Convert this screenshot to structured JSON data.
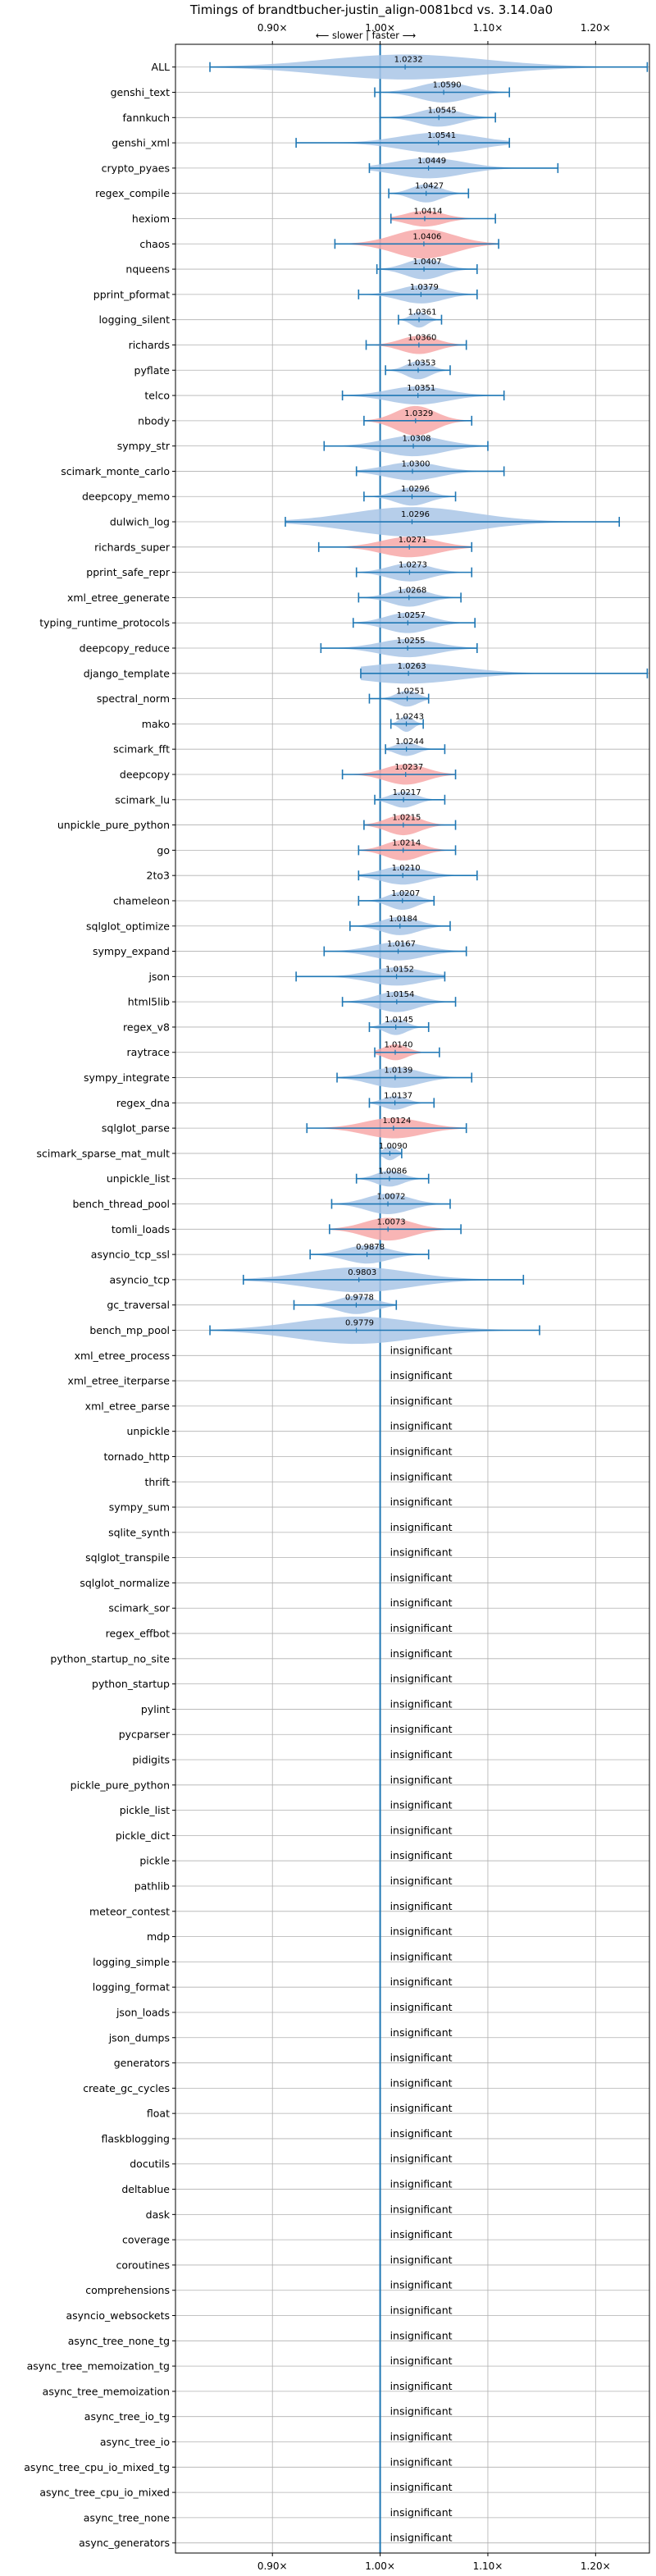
{
  "chart_data": {
    "type": "violin",
    "title": "Timings of brandtbucher-justin_align-0081bcd vs. 3.14.0a0",
    "direction_label": "⟵ slower | faster ⟶",
    "x_ticks": [
      {
        "value": 0.9,
        "label": "0.90×"
      },
      {
        "value": 1.0,
        "label": "1.00×"
      },
      {
        "value": 1.1,
        "label": "1.10×"
      },
      {
        "value": 1.2,
        "label": "1.20×"
      }
    ],
    "xlim": [
      0.81,
      1.25
    ],
    "reference_line": 1.0,
    "grid": true,
    "colors": {
      "faster": "#a9c6e6",
      "slower": "#f7a8a8",
      "whisker": "#1f77b4",
      "grid": "#b0b0b0"
    },
    "significant": [
      {
        "name": "ALL",
        "value": 1.0232,
        "label": "1.0232",
        "min": 0.842,
        "max": 1.248,
        "width": 0.55,
        "color": "faster"
      },
      {
        "name": "genshi_text",
        "value": 1.059,
        "label": "1.0590",
        "min": 0.995,
        "max": 1.12,
        "width": 0.45,
        "color": "faster"
      },
      {
        "name": "fannkuch",
        "value": 1.0545,
        "label": "1.0545",
        "min": 1.0,
        "max": 1.107,
        "width": 0.4,
        "color": "faster"
      },
      {
        "name": "genshi_xml",
        "value": 1.0541,
        "label": "1.0541",
        "min": 0.922,
        "max": 1.12,
        "width": 0.45,
        "color": "faster"
      },
      {
        "name": "crypto_pyaes",
        "value": 1.0449,
        "label": "1.0449",
        "min": 0.99,
        "max": 1.165,
        "width": 0.45,
        "color": "faster"
      },
      {
        "name": "regex_compile",
        "value": 1.0427,
        "label": "1.0427",
        "min": 1.008,
        "max": 1.082,
        "width": 0.4,
        "color": "faster"
      },
      {
        "name": "hexiom",
        "value": 1.0414,
        "label": "1.0414",
        "min": 1.01,
        "max": 1.107,
        "width": 0.35,
        "color": "slower"
      },
      {
        "name": "chaos",
        "value": 1.0406,
        "label": "1.0406",
        "min": 0.958,
        "max": 1.11,
        "width": 0.65,
        "color": "slower"
      },
      {
        "name": "nqueens",
        "value": 1.0407,
        "label": "1.0407",
        "min": 0.997,
        "max": 1.09,
        "width": 0.45,
        "color": "faster"
      },
      {
        "name": "pprint_pformat",
        "value": 1.0379,
        "label": "1.0379",
        "min": 0.98,
        "max": 1.09,
        "width": 0.4,
        "color": "faster"
      },
      {
        "name": "logging_silent",
        "value": 1.0361,
        "label": "1.0361",
        "min": 1.017,
        "max": 1.057,
        "width": 0.35,
        "color": "faster"
      },
      {
        "name": "richards",
        "value": 1.036,
        "label": "1.0360",
        "min": 0.987,
        "max": 1.08,
        "width": 0.4,
        "color": "slower"
      },
      {
        "name": "pyflate",
        "value": 1.0353,
        "label": "1.0353",
        "min": 1.005,
        "max": 1.065,
        "width": 0.4,
        "color": "faster"
      },
      {
        "name": "telco",
        "value": 1.0351,
        "label": "1.0351",
        "min": 0.965,
        "max": 1.115,
        "width": 0.4,
        "color": "faster"
      },
      {
        "name": "nbody",
        "value": 1.0329,
        "label": "1.0329",
        "min": 0.985,
        "max": 1.085,
        "width": 0.65,
        "color": "slower"
      },
      {
        "name": "sympy_str",
        "value": 1.0308,
        "label": "1.0308",
        "min": 0.948,
        "max": 1.1,
        "width": 0.45,
        "color": "faster"
      },
      {
        "name": "scimark_monte_carlo",
        "value": 1.03,
        "label": "1.0300",
        "min": 0.978,
        "max": 1.115,
        "width": 0.4,
        "color": "faster"
      },
      {
        "name": "deepcopy_memo",
        "value": 1.0296,
        "label": "1.0296",
        "min": 0.985,
        "max": 1.07,
        "width": 0.4,
        "color": "faster"
      },
      {
        "name": "dulwich_log",
        "value": 1.0296,
        "label": "1.0296",
        "min": 0.912,
        "max": 1.222,
        "width": 0.65,
        "color": "faster"
      },
      {
        "name": "richards_super",
        "value": 1.0271,
        "label": "1.0271",
        "min": 0.943,
        "max": 1.085,
        "width": 0.45,
        "color": "slower"
      },
      {
        "name": "pprint_safe_repr",
        "value": 1.0273,
        "label": "1.0273",
        "min": 0.978,
        "max": 1.085,
        "width": 0.4,
        "color": "faster"
      },
      {
        "name": "xml_etree_generate",
        "value": 1.0268,
        "label": "1.0268",
        "min": 0.98,
        "max": 1.075,
        "width": 0.4,
        "color": "faster"
      },
      {
        "name": "typing_runtime_protocols",
        "value": 1.0257,
        "label": "1.0257",
        "min": 0.975,
        "max": 1.088,
        "width": 0.45,
        "color": "faster"
      },
      {
        "name": "deepcopy_reduce",
        "value": 1.0255,
        "label": "1.0255",
        "min": 0.945,
        "max": 1.09,
        "width": 0.4,
        "color": "faster"
      },
      {
        "name": "django_template",
        "value": 1.0263,
        "label": "1.0263",
        "min": 0.982,
        "max": 1.248,
        "width": 0.45,
        "color": "faster"
      },
      {
        "name": "spectral_norm",
        "value": 1.0251,
        "label": "1.0251",
        "min": 0.99,
        "max": 1.045,
        "width": 0.35,
        "color": "faster"
      },
      {
        "name": "mako",
        "value": 1.0243,
        "label": "1.0243",
        "min": 1.01,
        "max": 1.04,
        "width": 0.35,
        "color": "faster"
      },
      {
        "name": "scimark_fft",
        "value": 1.0244,
        "label": "1.0244",
        "min": 1.005,
        "max": 1.06,
        "width": 0.3,
        "color": "faster"
      },
      {
        "name": "deepcopy",
        "value": 1.0237,
        "label": "1.0237",
        "min": 0.965,
        "max": 1.07,
        "width": 0.45,
        "color": "slower"
      },
      {
        "name": "scimark_lu",
        "value": 1.0217,
        "label": "1.0217",
        "min": 0.995,
        "max": 1.06,
        "width": 0.35,
        "color": "faster"
      },
      {
        "name": "unpickle_pure_python",
        "value": 1.0215,
        "label": "1.0215",
        "min": 0.985,
        "max": 1.07,
        "width": 0.45,
        "color": "slower"
      },
      {
        "name": "go",
        "value": 1.0214,
        "label": "1.0214",
        "min": 0.98,
        "max": 1.07,
        "width": 0.45,
        "color": "slower"
      },
      {
        "name": "2to3",
        "value": 1.021,
        "label": "1.0210",
        "min": 0.98,
        "max": 1.09,
        "width": 0.4,
        "color": "faster"
      },
      {
        "name": "chameleon",
        "value": 1.0207,
        "label": "1.0207",
        "min": 0.98,
        "max": 1.05,
        "width": 0.4,
        "color": "faster"
      },
      {
        "name": "sqlglot_optimize",
        "value": 1.0184,
        "label": "1.0184",
        "min": 0.972,
        "max": 1.065,
        "width": 0.4,
        "color": "faster"
      },
      {
        "name": "sympy_expand",
        "value": 1.0167,
        "label": "1.0167",
        "min": 0.948,
        "max": 1.08,
        "width": 0.4,
        "color": "faster"
      },
      {
        "name": "json",
        "value": 1.0152,
        "label": "1.0152",
        "min": 0.922,
        "max": 1.06,
        "width": 0.4,
        "color": "faster"
      },
      {
        "name": "html5lib",
        "value": 1.0154,
        "label": "1.0154",
        "min": 0.965,
        "max": 1.07,
        "width": 0.45,
        "color": "faster"
      },
      {
        "name": "regex_v8",
        "value": 1.0145,
        "label": "1.0145",
        "min": 0.99,
        "max": 1.045,
        "width": 0.35,
        "color": "faster"
      },
      {
        "name": "raytrace",
        "value": 1.014,
        "label": "1.0140",
        "min": 0.995,
        "max": 1.055,
        "width": 0.35,
        "color": "slower"
      },
      {
        "name": "sympy_integrate",
        "value": 1.0139,
        "label": "1.0139",
        "min": 0.96,
        "max": 1.085,
        "width": 0.45,
        "color": "faster"
      },
      {
        "name": "regex_dna",
        "value": 1.0137,
        "label": "1.0137",
        "min": 0.99,
        "max": 1.05,
        "width": 0.3,
        "color": "faster"
      },
      {
        "name": "sqlglot_parse",
        "value": 1.0124,
        "label": "1.0124",
        "min": 0.932,
        "max": 1.08,
        "width": 0.45,
        "color": "slower"
      },
      {
        "name": "scimark_sparse_mat_mult",
        "value": 1.009,
        "label": "1.0090",
        "min": 1.0,
        "max": 1.02,
        "width": 0.3,
        "color": "faster"
      },
      {
        "name": "unpickle_list",
        "value": 1.0086,
        "label": "1.0086",
        "min": 0.978,
        "max": 1.045,
        "width": 0.35,
        "color": "faster"
      },
      {
        "name": "bench_thread_pool",
        "value": 1.0072,
        "label": "1.0072",
        "min": 0.955,
        "max": 1.065,
        "width": 0.45,
        "color": "faster"
      },
      {
        "name": "tomli_loads",
        "value": 1.0073,
        "label": "1.0073",
        "min": 0.953,
        "max": 1.075,
        "width": 0.5,
        "color": "slower"
      },
      {
        "name": "asyncio_tcp_ssl",
        "value": 0.9878,
        "label": "0.9878",
        "min": 0.935,
        "max": 1.045,
        "width": 0.4,
        "color": "faster"
      },
      {
        "name": "asyncio_tcp",
        "value": 0.9803,
        "label": "0.9803",
        "min": 0.873,
        "max": 1.133,
        "width": 0.55,
        "color": "faster"
      },
      {
        "name": "gc_traversal",
        "value": 0.9778,
        "label": "0.9778",
        "min": 0.92,
        "max": 1.015,
        "width": 0.4,
        "color": "faster"
      },
      {
        "name": "bench_mp_pool",
        "value": 0.9779,
        "label": "0.9779",
        "min": 0.842,
        "max": 1.148,
        "width": 0.6,
        "color": "faster"
      }
    ],
    "insignificant_label": "insignificant",
    "insignificant": [
      "xml_etree_process",
      "xml_etree_iterparse",
      "xml_etree_parse",
      "unpickle",
      "tornado_http",
      "thrift",
      "sympy_sum",
      "sqlite_synth",
      "sqlglot_transpile",
      "sqlglot_normalize",
      "scimark_sor",
      "regex_effbot",
      "python_startup_no_site",
      "python_startup",
      "pylint",
      "pycparser",
      "pidigits",
      "pickle_pure_python",
      "pickle_list",
      "pickle_dict",
      "pickle",
      "pathlib",
      "meteor_contest",
      "mdp",
      "logging_simple",
      "logging_format",
      "json_loads",
      "json_dumps",
      "generators",
      "create_gc_cycles",
      "float",
      "flaskblogging",
      "docutils",
      "deltablue",
      "dask",
      "coverage",
      "coroutines",
      "comprehensions",
      "asyncio_websockets",
      "async_tree_none_tg",
      "async_tree_memoization_tg",
      "async_tree_memoization",
      "async_tree_io_tg",
      "async_tree_io",
      "async_tree_cpu_io_mixed_tg",
      "async_tree_cpu_io_mixed",
      "async_tree_none",
      "async_generators"
    ]
  }
}
